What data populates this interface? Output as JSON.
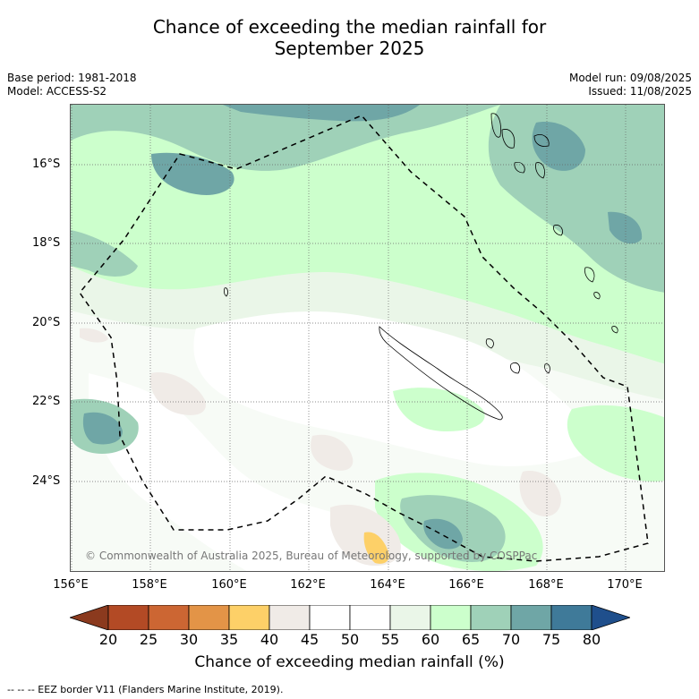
{
  "title_line1": "Chance of exceeding the median rainfall for",
  "title_line2": "September 2025",
  "meta": {
    "base_period": "Base period: 1981-2018",
    "model": "Model: ACCESS-S2",
    "model_run": "Model run: 09/08/2025",
    "issued": "Issued: 11/08/2025"
  },
  "lat_labels": [
    "16°S",
    "18°S",
    "20°S",
    "22°S",
    "24°S"
  ],
  "lon_labels": [
    "156°E",
    "158°E",
    "160°E",
    "162°E",
    "164°E",
    "166°E",
    "168°E",
    "170°E"
  ],
  "copyright": "© Commonwealth of Australia 2025, Bureau of Meteorology, supported by COSPPac",
  "colorbar": {
    "ticks": [
      "20",
      "25",
      "30",
      "35",
      "40",
      "45",
      "50",
      "55",
      "60",
      "65",
      "70",
      "75",
      "80"
    ],
    "colors": [
      "#8b3a1e",
      "#b34a25",
      "#cc6633",
      "#e39447",
      "#fdd068",
      "#f0ebe7",
      "#ffffff",
      "#ffffff",
      "#eaf6e8",
      "#ccffcc",
      "#9fd1b8",
      "#6fa6a6",
      "#3f7a99",
      "#1f4f8c"
    ],
    "label": "Chance of exceeding median rainfall (%)"
  },
  "footnote": "--  --  -- EEZ border V11 (Flanders Marine Institute, 2019)."
}
